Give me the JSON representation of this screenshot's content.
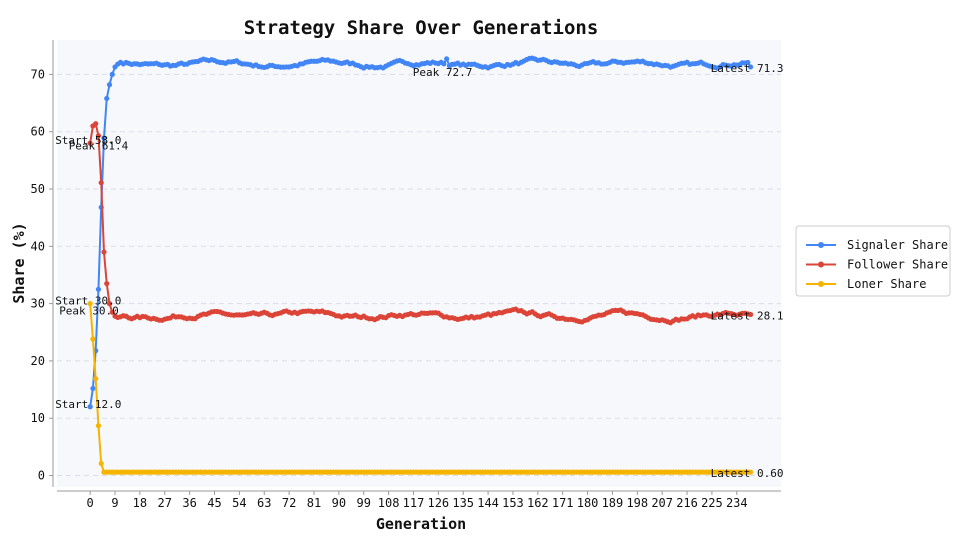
{
  "chart_data": {
    "type": "line",
    "title": "Strategy Share Over Generations",
    "xlabel": "Generation",
    "ylabel": "Share (%)",
    "xlim": [
      -12,
      250
    ],
    "ylim": [
      -2,
      76
    ],
    "x_ticks": [
      0,
      9,
      18,
      27,
      36,
      45,
      54,
      63,
      72,
      81,
      90,
      99,
      108,
      117,
      126,
      135,
      144,
      153,
      162,
      171,
      180,
      189,
      198,
      207,
      216,
      225,
      234
    ],
    "y_ticks": [
      0,
      10,
      20,
      30,
      40,
      50,
      60,
      70
    ],
    "grid": "horizontal dashed",
    "legend_position": "right",
    "colors": {
      "signaler": "#4285f4",
      "follower": "#db4437",
      "loner": "#f4b400"
    },
    "generations": 240,
    "series": [
      {
        "name": "Signaler Share",
        "key": "signaler",
        "initial": [
          12.0,
          15.2,
          21.8,
          32.5,
          46.8,
          58.9,
          65.8,
          68.2,
          70.0,
          71.3,
          71.8,
          72.1
        ],
        "plateau": 71.8,
        "wobble": 0.55,
        "final": 71.3,
        "peak": {
          "x": 129,
          "y": 72.7
        }
      },
      {
        "name": "Follower Share",
        "key": "follower",
        "initial": [
          58.0,
          61.0,
          61.4,
          59.3,
          51.1,
          39.0,
          33.5,
          30.0,
          28.5,
          27.8,
          27.6,
          27.7
        ],
        "plateau": 27.9,
        "wobble": 0.55,
        "final": 28.1,
        "peak": {
          "x": 2,
          "y": 61.4
        }
      },
      {
        "name": "Loner Share",
        "key": "loner",
        "initial": [
          30.0,
          23.8,
          16.9,
          8.7,
          2.1,
          0.6
        ],
        "plateau": 0.6,
        "wobble": 0,
        "final": 0.6,
        "peak": {
          "x": 0,
          "y": 30.0
        }
      }
    ],
    "annotations": [
      {
        "text": "Start 12.0",
        "x": 0,
        "y": 12.0,
        "anchor": "start-of-series"
      },
      {
        "text": "Start 58.0",
        "x": 0,
        "y": 58.0,
        "anchor": "start-of-series"
      },
      {
        "text": "Peak 61.4",
        "x": 2,
        "y": 61.4,
        "anchor": "peak"
      },
      {
        "text": "Start 30.0",
        "x": 0,
        "y": 30.0,
        "anchor": "start-of-series"
      },
      {
        "text": "Peak 30.0",
        "x": 0,
        "y": 30.0,
        "anchor": "peak"
      },
      {
        "text": "Peak 72.7",
        "x": 129,
        "y": 72.7,
        "anchor": "peak"
      },
      {
        "text": "Latest 71.3",
        "x": 239,
        "y": 71.3,
        "anchor": "latest"
      },
      {
        "text": "Latest 28.1",
        "x": 239,
        "y": 28.1,
        "anchor": "latest"
      },
      {
        "text": "Latest 0.60",
        "x": 239,
        "y": 0.6,
        "anchor": "latest"
      }
    ]
  }
}
